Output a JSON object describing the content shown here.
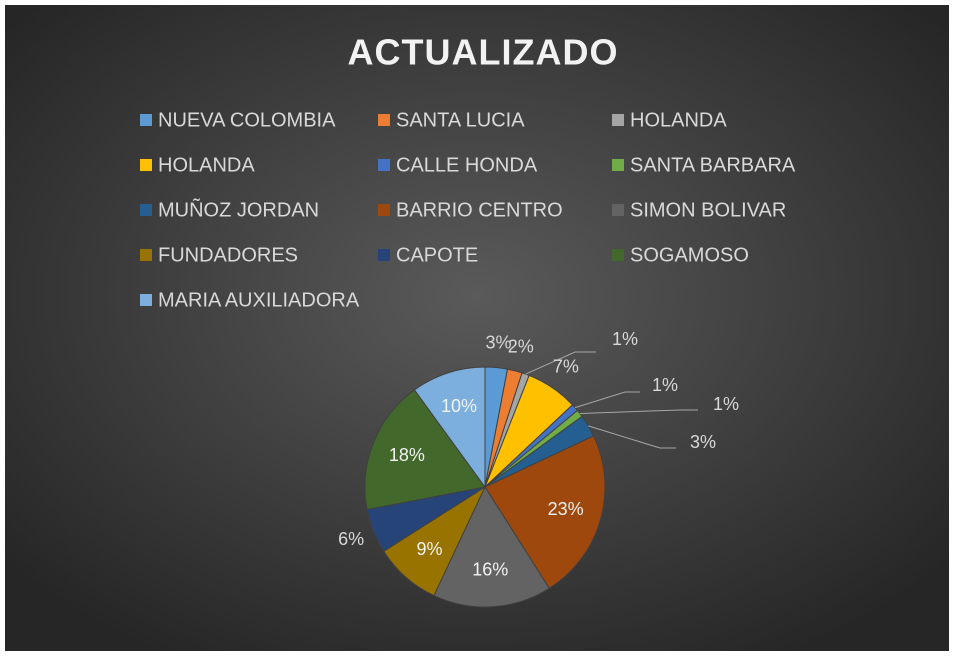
{
  "chart_data": {
    "type": "pie",
    "title": "ACTUALIZADO",
    "categories": [
      "NUEVA COLOMBIA",
      "SANTA LUCIA",
      "HOLANDA",
      "HOLANDA",
      "CALLE HONDA",
      "SANTA BARBARA",
      "MUÑOZ JORDAN",
      "BARRIO CENTRO",
      "SIMON BOLIVAR",
      "FUNDADORES",
      "CAPOTE",
      "SOGAMOSO",
      "MARIA AUXILIADORA"
    ],
    "values": [
      3,
      2,
      1,
      7,
      1,
      1,
      3,
      23,
      16,
      9,
      6,
      18,
      10
    ],
    "value_labels": [
      "3%",
      "2%",
      "1%",
      "7%",
      "1%",
      "1%",
      "3%",
      "23%",
      "16%",
      "9%",
      "6%",
      "18%",
      "10%"
    ],
    "colors": [
      "#5b9bd5",
      "#ed7d31",
      "#a5a5a5",
      "#ffc000",
      "#4472c4",
      "#70ad47",
      "#255e91",
      "#9e480e",
      "#636363",
      "#997300",
      "#264478",
      "#43682b",
      "#7cafdd"
    ],
    "legend": "top"
  }
}
